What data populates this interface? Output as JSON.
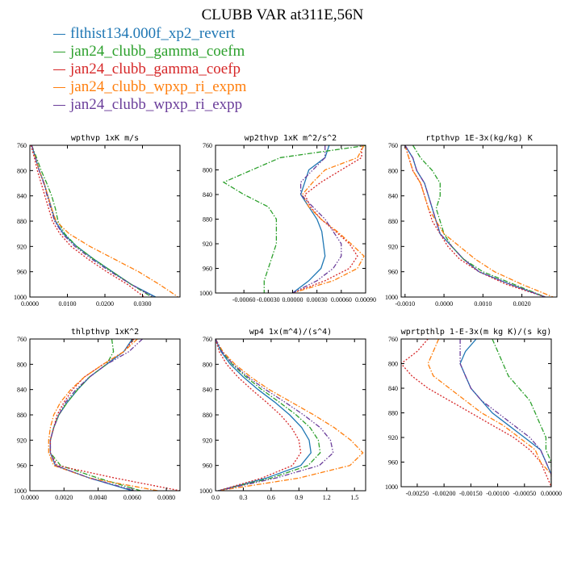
{
  "title": "CLUBB VAR at311E,56N",
  "legend": [
    {
      "name": "flthist134.000f_xp2_revert",
      "color": "#1f77b4",
      "dash": ""
    },
    {
      "name": "jan24_clubb_gamma_coefm",
      "color": "#2ca02c",
      "dash": "6,2,1.5,2"
    },
    {
      "name": "jan24_clubb_gamma_coefp",
      "color": "#d62728",
      "dash": "2,2"
    },
    {
      "name": "jan24_clubb_wpxp_ri_expm",
      "color": "#ff7f0e",
      "dash": "6,2,1.5,2"
    },
    {
      "name": "jan24_clubb_wpxp_ri_expp",
      "color": "#6a3d9a",
      "dash": "6,2,1.5,2,1.5,2"
    }
  ],
  "chart_data": [
    {
      "type": "line",
      "title": "wpthvp   1xK m/s",
      "xlim": [
        0,
        0.04
      ],
      "ylim": [
        760,
        1000
      ],
      "xticks": [
        "0.0000",
        "0.0100",
        "0.0200",
        "0.0300"
      ],
      "xtick_values": [
        0,
        0.01,
        0.02,
        0.03
      ],
      "yticks": [
        760,
        800,
        840,
        880,
        920,
        960,
        1000
      ],
      "y": [
        760,
        780,
        800,
        820,
        840,
        860,
        880,
        900,
        920,
        940,
        960,
        980,
        1000
      ],
      "series": [
        {
          "values": [
            0.0005,
            0.0015,
            0.0025,
            0.0038,
            0.0048,
            0.0058,
            0.0068,
            0.009,
            0.0125,
            0.017,
            0.022,
            0.027,
            0.0335
          ]
        },
        {
          "values": [
            0.0005,
            0.0018,
            0.003,
            0.0045,
            0.0058,
            0.0068,
            0.0075,
            0.0093,
            0.0125,
            0.017,
            0.022,
            0.027,
            0.0325
          ]
        },
        {
          "values": [
            0.0003,
            0.0012,
            0.002,
            0.003,
            0.004,
            0.005,
            0.006,
            0.008,
            0.011,
            0.0155,
            0.0205,
            0.026,
            0.0305
          ]
        },
        {
          "values": [
            0.0005,
            0.0015,
            0.0025,
            0.0038,
            0.0048,
            0.0058,
            0.007,
            0.0105,
            0.016,
            0.0225,
            0.029,
            0.0345,
            0.0395
          ]
        },
        {
          "values": [
            0.0005,
            0.0015,
            0.0025,
            0.0037,
            0.0046,
            0.0056,
            0.0066,
            0.0087,
            0.012,
            0.0165,
            0.0215,
            0.027,
            0.033
          ]
        }
      ]
    },
    {
      "type": "line",
      "title": "wp2thvp   1xK m^2/s^2",
      "xlim": [
        -0.00095,
        0.0009
      ],
      "ylim": [
        760,
        1000
      ],
      "xticks": [
        "-0.00060",
        "-0.00030",
        "0.00000",
        "0.00030",
        "0.00060",
        "0.00090"
      ],
      "xtick_values": [
        -0.0006,
        -0.0003,
        0,
        0.0003,
        0.0006,
        0.0009
      ],
      "yticks": [
        760,
        800,
        840,
        880,
        920,
        960,
        1000
      ],
      "y": [
        760,
        780,
        800,
        820,
        840,
        860,
        880,
        900,
        920,
        940,
        960,
        980,
        1000
      ],
      "series": [
        {
          "values": [
            0.00045,
            0.0004,
            0.0002,
            0.00015,
            0.0001,
            0.0002,
            0.0003,
            0.00036,
            0.00038,
            0.0004,
            0.00035,
            0.0002,
            0.0
          ]
        },
        {
          "values": [
            0.00092,
            -0.00015,
            -0.0005,
            -0.00085,
            -0.0006,
            -0.0003,
            -0.0002,
            -0.0002,
            -0.0002,
            -0.00025,
            -0.0003,
            -0.00035,
            -0.00035
          ]
        },
        {
          "values": [
            0.00085,
            0.00085,
            0.0006,
            0.00035,
            0.00015,
            0.00022,
            0.00035,
            0.00053,
            0.0007,
            0.0008,
            0.0007,
            0.0004,
            0.0
          ]
        },
        {
          "values": [
            0.00088,
            0.0008,
            0.0004,
            0.00025,
            0.00012,
            0.0002,
            0.00035,
            0.00055,
            0.00072,
            0.00088,
            0.0008,
            0.0005,
            0.0
          ]
        },
        {
          "values": [
            0.0004,
            0.0004,
            0.00025,
            0.0001,
            0.0001,
            0.00025,
            0.0004,
            0.0005,
            0.0006,
            0.0006,
            0.0005,
            0.0003,
            0.0
          ]
        }
      ]
    },
    {
      "type": "line",
      "title": "rtpthvp   1E-3x(kg/kg) K",
      "xlim": [
        -0.0011,
        0.0029
      ],
      "ylim": [
        760,
        1000
      ],
      "xticks": [
        "-0.0010",
        "0.0000",
        "0.0010",
        "0.0020"
      ],
      "xtick_values": [
        -0.001,
        0,
        0.001,
        0.002
      ],
      "yticks": [
        760,
        800,
        840,
        880,
        920,
        960,
        1000
      ],
      "y": [
        760,
        780,
        800,
        820,
        840,
        860,
        880,
        900,
        920,
        940,
        960,
        980,
        1000
      ],
      "series": [
        {
          "values": [
            -0.001,
            -0.0008,
            -0.0007,
            -0.0005,
            -0.0004,
            -0.0003,
            -0.0002,
            -0.0001,
            0.0002,
            0.0005,
            0.0009,
            0.0017,
            0.0026
          ]
        },
        {
          "values": [
            -0.0008,
            -0.0006,
            -0.0003,
            -0.0001,
            -0.0001,
            -0.0002,
            -0.0001,
            0.0,
            0.0002,
            0.0005,
            0.001,
            0.0018,
            0.0026
          ]
        },
        {
          "values": [
            -0.001,
            -0.0009,
            -0.0008,
            -0.0006,
            -0.0005,
            -0.0004,
            -0.0003,
            -0.0001,
            0.0001,
            0.0004,
            0.0009,
            0.0016,
            0.0026
          ]
        },
        {
          "values": [
            -0.001,
            -0.0009,
            -0.0008,
            -0.0006,
            -0.0005,
            -0.0004,
            -0.0002,
            0.0,
            0.0004,
            0.0008,
            0.0013,
            0.002,
            0.0028
          ]
        },
        {
          "values": [
            -0.001,
            -0.0008,
            -0.0007,
            -0.0005,
            -0.0004,
            -0.0003,
            -0.0002,
            -0.0001,
            0.0002,
            0.0005,
            0.0009,
            0.0017,
            0.0026
          ]
        }
      ]
    },
    {
      "type": "line",
      "title": "thlpthvp   1xK^2",
      "xlim": [
        0,
        0.0088
      ],
      "ylim": [
        760,
        1000
      ],
      "xticks": [
        "0.0000",
        "0.0020",
        "0.0040",
        "0.0060",
        "0.0080"
      ],
      "xtick_values": [
        0,
        0.002,
        0.004,
        0.006,
        0.008
      ],
      "yticks": [
        760,
        800,
        840,
        880,
        920,
        960,
        1000
      ],
      "y": [
        760,
        780,
        800,
        820,
        840,
        860,
        880,
        900,
        920,
        940,
        960,
        980,
        1000
      ],
      "series": [
        {
          "values": [
            0.006,
            0.0055,
            0.0045,
            0.0035,
            0.0028,
            0.0022,
            0.0017,
            0.0014,
            0.0012,
            0.0012,
            0.0015,
            0.0035,
            0.006
          ]
        },
        {
          "values": [
            0.0048,
            0.0049,
            0.0045,
            0.0035,
            0.0028,
            0.0022,
            0.0017,
            0.0014,
            0.0012,
            0.0012,
            0.0018,
            0.004,
            0.0065
          ]
        },
        {
          "values": [
            0.0061,
            0.0055,
            0.0043,
            0.0032,
            0.0025,
            0.002,
            0.0016,
            0.0014,
            0.0012,
            0.0012,
            0.0016,
            0.005,
            0.0088
          ]
        },
        {
          "values": [
            0.0063,
            0.0055,
            0.0043,
            0.0032,
            0.0024,
            0.0018,
            0.0014,
            0.0012,
            0.0011,
            0.0011,
            0.0014,
            0.0035,
            0.0075
          ]
        },
        {
          "values": [
            0.0066,
            0.0058,
            0.0045,
            0.0035,
            0.0027,
            0.0021,
            0.0017,
            0.0014,
            0.0012,
            0.0012,
            0.0015,
            0.0035,
            0.0062
          ]
        }
      ]
    },
    {
      "type": "line",
      "title": "wp4   1x(m^4)/(s^4)",
      "xlim": [
        0,
        1.62
      ],
      "ylim": [
        760,
        1000
      ],
      "xticks": [
        "0.0",
        "0.3",
        "0.6",
        "0.9",
        "1.2",
        "1.5"
      ],
      "xtick_values": [
        0,
        0.3,
        0.6,
        0.9,
        1.2,
        1.5
      ],
      "yticks": [
        760,
        800,
        840,
        880,
        920,
        960,
        1000
      ],
      "y": [
        760,
        780,
        800,
        820,
        840,
        860,
        880,
        900,
        920,
        940,
        960,
        980,
        1000
      ],
      "series": [
        {
          "values": [
            0.0,
            0.06,
            0.16,
            0.3,
            0.46,
            0.64,
            0.8,
            0.93,
            1.01,
            1.03,
            0.92,
            0.55,
            0.03
          ]
        },
        {
          "values": [
            0.0,
            0.07,
            0.18,
            0.33,
            0.5,
            0.69,
            0.87,
            1.02,
            1.11,
            1.13,
            1.0,
            0.6,
            0.03
          ]
        },
        {
          "values": [
            0.0,
            0.04,
            0.12,
            0.24,
            0.39,
            0.55,
            0.7,
            0.82,
            0.9,
            0.92,
            0.83,
            0.5,
            0.03
          ]
        },
        {
          "values": [
            0.0,
            0.08,
            0.21,
            0.38,
            0.58,
            0.82,
            1.06,
            1.28,
            1.46,
            1.59,
            1.45,
            0.9,
            0.03
          ]
        },
        {
          "values": [
            0.0,
            0.07,
            0.19,
            0.35,
            0.54,
            0.75,
            0.95,
            1.13,
            1.24,
            1.27,
            1.12,
            0.65,
            0.03
          ]
        }
      ]
    },
    {
      "type": "line",
      "title": "wprtpthlp   1-E-3x(m kg K)/(s kg)",
      "xlim": [
        -0.0028,
        0.0
      ],
      "ylim": [
        760,
        1000
      ],
      "xticks": [
        "-0.00250",
        "-0.00200",
        "-0.00150",
        "-0.00100",
        "-0.00050",
        "0.00000"
      ],
      "xtick_values": [
        -0.0025,
        -0.002,
        -0.0015,
        -0.001,
        -0.0005,
        0.0
      ],
      "yticks": [
        760,
        800,
        840,
        880,
        920,
        960,
        1000
      ],
      "y": [
        760,
        780,
        800,
        820,
        840,
        860,
        880,
        900,
        920,
        940,
        960,
        980,
        1000
      ],
      "series": [
        {
          "values": [
            -0.0014,
            -0.0016,
            -0.0017,
            -0.0016,
            -0.0015,
            -0.0013,
            -0.0011,
            -0.0008,
            -0.0005,
            -0.0002,
            -0.0001,
            0.0,
            0.0
          ]
        },
        {
          "values": [
            -0.0011,
            -0.001,
            -0.0009,
            -0.0008,
            -0.0006,
            -0.0004,
            -0.0003,
            -0.0002,
            -0.0001,
            -0.0001,
            0.0,
            0.0,
            0.0
          ]
        },
        {
          "values": [
            -0.0023,
            -0.0025,
            -0.0028,
            -0.0026,
            -0.0023,
            -0.0019,
            -0.0015,
            -0.0011,
            -0.0007,
            -0.0004,
            -0.0002,
            -0.0001,
            0.0
          ]
        },
        {
          "values": [
            -0.0021,
            -0.0022,
            -0.0023,
            -0.0022,
            -0.0019,
            -0.0016,
            -0.0013,
            -0.0009,
            -0.0006,
            -0.0003,
            -0.0002,
            0.0,
            0.0
          ]
        },
        {
          "values": [
            -0.0017,
            -0.0017,
            -0.0017,
            -0.0016,
            -0.0015,
            -0.0013,
            -0.001,
            -0.0007,
            -0.0004,
            -0.0002,
            -0.0001,
            0.0,
            0.0
          ]
        }
      ]
    }
  ]
}
